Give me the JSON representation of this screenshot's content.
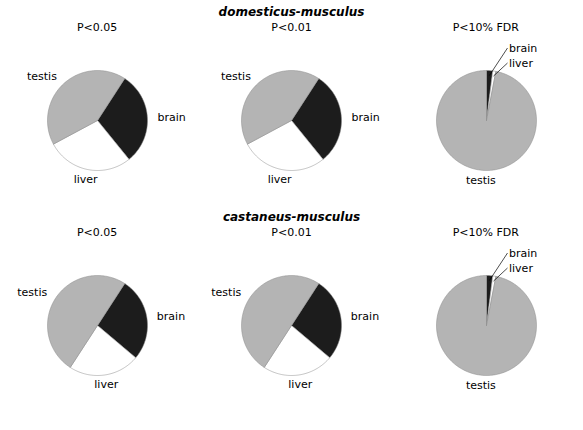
{
  "chart_data": [
    {
      "type": "pie",
      "title": "domesticus-musculus",
      "subtitle": "P<0.05",
      "categories": [
        "brain",
        "liver",
        "testis"
      ],
      "values": [
        30,
        28,
        42
      ],
      "colors": [
        "#1c1c1c",
        "#ffffff",
        "#b4b4b4"
      ]
    },
    {
      "type": "pie",
      "title": "domesticus-musculus",
      "subtitle": "P<0.01",
      "categories": [
        "brain",
        "liver",
        "testis"
      ],
      "values": [
        30,
        28,
        42
      ],
      "colors": [
        "#1c1c1c",
        "#ffffff",
        "#b4b4b4"
      ]
    },
    {
      "type": "pie",
      "title": "domesticus-musculus",
      "subtitle": "P<10% FDR",
      "categories": [
        "brain",
        "liver",
        "testis"
      ],
      "values": [
        2,
        1,
        97
      ],
      "colors": [
        "#1c1c1c",
        "#ffffff",
        "#b4b4b4"
      ]
    },
    {
      "type": "pie",
      "title": "castaneus-musculus",
      "subtitle": "P<0.05",
      "categories": [
        "brain",
        "liver",
        "testis"
      ],
      "values": [
        27,
        23,
        50
      ],
      "colors": [
        "#1c1c1c",
        "#ffffff",
        "#b4b4b4"
      ]
    },
    {
      "type": "pie",
      "title": "castaneus-musculus",
      "subtitle": "P<0.01",
      "categories": [
        "brain",
        "liver",
        "testis"
      ],
      "values": [
        27,
        23,
        50
      ],
      "colors": [
        "#1c1c1c",
        "#ffffff",
        "#b4b4b4"
      ]
    },
    {
      "type": "pie",
      "title": "castaneus-musculus",
      "subtitle": "P<10% FDR",
      "categories": [
        "brain",
        "liver",
        "testis"
      ],
      "values": [
        2,
        1,
        97
      ],
      "colors": [
        "#1c1c1c",
        "#ffffff",
        "#b4b4b4"
      ]
    }
  ]
}
